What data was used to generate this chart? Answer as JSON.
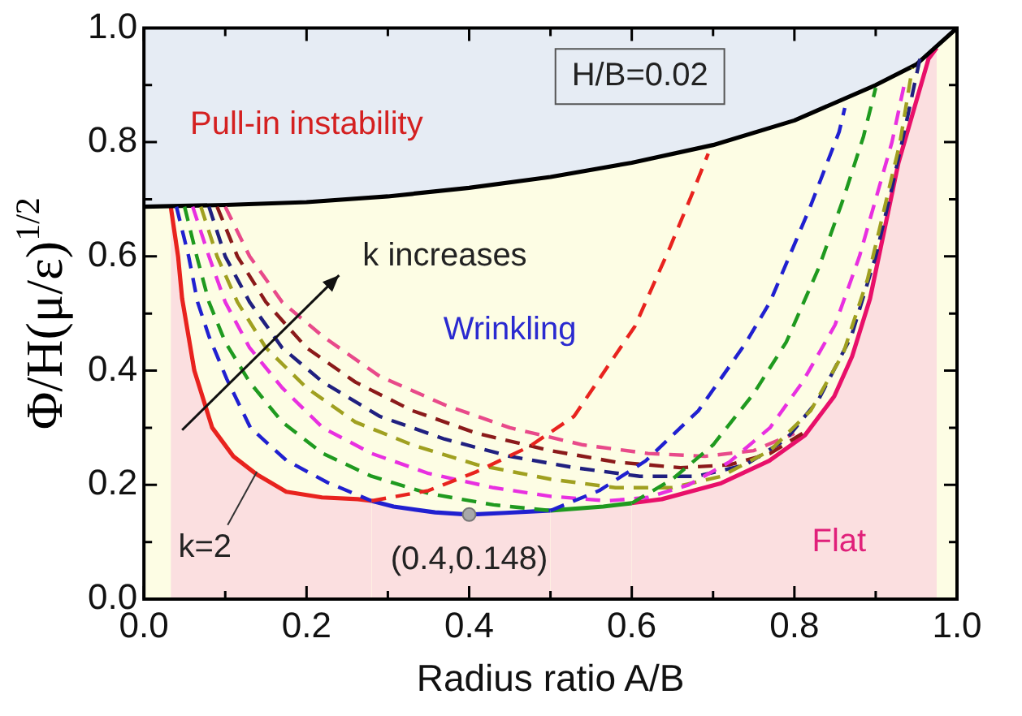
{
  "chart_data": {
    "type": "line",
    "xlabel": "Radius ratio A/B",
    "ylabel": "Φ/H(μ/ε)$^{1/2}$",
    "xlim": [
      0,
      1
    ],
    "ylim": [
      0,
      1
    ],
    "xticks": [
      {
        "value": 0,
        "label": "0.0"
      },
      {
        "value": 0.1,
        "label": null
      },
      {
        "value": 0.2,
        "label": "0.2"
      },
      {
        "value": 0.3,
        "label": null
      },
      {
        "value": 0.4,
        "label": "0.4"
      },
      {
        "value": 0.5,
        "label": null
      },
      {
        "value": 0.6,
        "label": "0.6"
      },
      {
        "value": 0.7,
        "label": null
      },
      {
        "value": 0.8,
        "label": "0.8"
      },
      {
        "value": 0.9,
        "label": null
      },
      {
        "value": 1,
        "label": "1.0"
      }
    ],
    "yticks": [
      {
        "value": 0,
        "label": "0.0"
      },
      {
        "value": 0.1,
        "label": null
      },
      {
        "value": 0.2,
        "label": "0.2"
      },
      {
        "value": 0.3,
        "label": null
      },
      {
        "value": 0.4,
        "label": "0.4"
      },
      {
        "value": 0.5,
        "label": null
      },
      {
        "value": 0.6,
        "label": "0.6"
      },
      {
        "value": 0.7,
        "label": null
      },
      {
        "value": 0.8,
        "label": "0.8"
      },
      {
        "value": 0.9,
        "label": null
      },
      {
        "value": 1,
        "label": "1.0"
      }
    ],
    "legend": false,
    "marker": "none",
    "series": [
      {
        "color": "#000000",
        "line_style": "solid",
        "x": [
          0,
          0.1,
          0.2,
          0.3,
          0.4,
          0.5,
          0.6,
          0.7,
          0.8,
          0.9,
          0.95,
          1
        ],
        "values": [
          0.687,
          0.69,
          0.695,
          0.705,
          0.72,
          0.739,
          0.764,
          0.795,
          0.838,
          0.9,
          0.936,
          1
        ]
      },
      {
        "type": "area",
        "color": "#e8231e",
        "line_style": "solid",
        "x": [
          0.033,
          0.042,
          0.047,
          0.062,
          0.084,
          0.11,
          0.139,
          0.175,
          0.219,
          0.263,
          0.28
        ],
        "values": [
          0.687,
          0.6,
          0.526,
          0.4,
          0.3,
          0.25,
          0.218,
          0.188,
          0.178,
          0.175,
          0.172
        ]
      },
      {
        "type": "area",
        "color": "#2020d0",
        "line_style": "solid",
        "x": [
          0.28,
          0.307,
          0.358,
          0.4,
          0.445,
          0.5
        ],
        "values": [
          0.172,
          0.162,
          0.152,
          0.148,
          0.151,
          0.155
        ]
      },
      {
        "type": "area",
        "color": "#1f9a1f",
        "line_style": "solid",
        "x": [
          0.5,
          0.565,
          0.6
        ],
        "values": [
          0.155,
          0.162,
          0.168
        ]
      },
      {
        "type": "area",
        "color": "#e8106a",
        "line_style": "solid",
        "x": [
          0.6,
          0.637,
          0.71,
          0.769,
          0.813,
          0.849,
          0.871,
          0.893,
          0.928,
          0.965,
          0.975
        ],
        "values": [
          0.168,
          0.175,
          0.203,
          0.242,
          0.287,
          0.355,
          0.425,
          0.526,
          0.764,
          0.946,
          0.965
        ]
      },
      {
        "color": "#e8231e",
        "line_style": "dashed",
        "x": [
          0.28,
          0.35,
          0.409,
          0.474,
          0.529,
          0.604,
          0.647,
          0.673,
          0.694
        ],
        "values": [
          0.172,
          0.19,
          0.223,
          0.267,
          0.32,
          0.478,
          0.616,
          0.705,
          0.78
        ]
      },
      {
        "color": "#2020d0",
        "line_style": "dashed",
        "x": [
          0.04,
          0.055,
          0.066,
          0.08,
          0.102,
          0.131,
          0.175,
          0.226,
          0.28,
          0.4,
          0.5,
          0.56,
          0.617,
          0.682,
          0.74,
          0.77,
          0.819,
          0.855,
          0.862
        ],
        "values": [
          0.687,
          0.6,
          0.52,
          0.46,
          0.385,
          0.3,
          0.243,
          0.204,
          0.172,
          null,
          0.155,
          0.19,
          0.242,
          0.33,
          0.448,
          0.52,
          0.685,
          0.818,
          0.86
        ]
      },
      {
        "color": "#1f9a1f",
        "line_style": "dashed",
        "x": [
          0.05,
          0.065,
          0.08,
          0.1,
          0.13,
          0.17,
          0.22,
          0.28,
          0.35,
          0.43,
          0.5,
          0.55,
          0.6,
          0.65,
          0.7,
          0.75,
          0.79,
          0.83,
          0.86,
          0.885,
          0.9
        ],
        "values": [
          0.687,
          0.6,
          0.52,
          0.45,
          0.38,
          0.31,
          0.255,
          0.215,
          0.185,
          0.165,
          0.155,
          null,
          0.168,
          0.21,
          0.27,
          0.36,
          0.45,
          0.58,
          0.7,
          0.81,
          0.895
        ]
      },
      {
        "color": "#e830e0",
        "line_style": "dashed",
        "x": [
          0.06,
          0.08,
          0.1,
          0.13,
          0.17,
          0.22,
          0.28,
          0.35,
          0.43,
          0.5,
          0.57,
          0.62,
          0.67,
          0.72,
          0.77,
          0.81,
          0.85,
          0.88,
          0.9,
          0.92,
          0.935
        ],
        "values": [
          0.687,
          0.6,
          0.52,
          0.44,
          0.37,
          0.3,
          0.255,
          0.22,
          0.195,
          0.18,
          0.172,
          0.178,
          0.2,
          0.24,
          0.3,
          0.38,
          0.48,
          0.6,
          0.7,
          0.8,
          0.9
        ]
      },
      {
        "color": "#a0a020",
        "line_style": "dashed",
        "x": [
          0.07,
          0.09,
          0.115,
          0.15,
          0.2,
          0.26,
          0.33,
          0.41,
          0.5,
          0.58,
          0.65,
          0.71,
          0.77,
          0.82,
          0.86,
          0.89,
          0.91,
          0.93,
          0.945
        ],
        "values": [
          0.687,
          0.6,
          0.52,
          0.44,
          0.37,
          0.31,
          0.27,
          0.235,
          0.21,
          0.195,
          0.195,
          0.215,
          0.26,
          0.33,
          0.43,
          0.56,
          0.68,
          0.8,
          0.93
        ]
      },
      {
        "color": "#202080",
        "line_style": "dashed",
        "x": [
          0.08,
          0.1,
          0.13,
          0.17,
          0.22,
          0.29,
          0.37,
          0.45,
          0.53,
          0.61,
          0.68,
          0.74,
          0.79,
          0.83,
          0.87,
          0.9,
          0.92,
          0.94,
          0.955
        ],
        "values": [
          0.687,
          0.6,
          0.52,
          0.44,
          0.38,
          0.32,
          0.28,
          0.25,
          0.23,
          0.215,
          0.215,
          0.235,
          0.28,
          0.35,
          0.46,
          0.6,
          0.72,
          0.85,
          0.95
        ]
      },
      {
        "color": "#8b1a1a",
        "line_style": "dashed",
        "x": [
          0.09,
          0.115,
          0.15,
          0.2,
          0.26,
          0.33,
          0.41,
          0.5,
          0.58,
          0.66,
          0.72,
          0.77,
          0.81
        ],
        "values": [
          0.687,
          0.6,
          0.52,
          0.44,
          0.38,
          0.33,
          0.29,
          0.26,
          0.24,
          0.23,
          0.235,
          0.255,
          0.29
        ]
      },
      {
        "color": "#e84a8a",
        "line_style": "dashed",
        "x": [
          0.1,
          0.13,
          0.17,
          0.22,
          0.29,
          0.37,
          0.45,
          0.54,
          0.62,
          0.69,
          0.75,
          0.8
        ],
        "values": [
          0.687,
          0.6,
          0.52,
          0.46,
          0.39,
          0.34,
          0.3,
          0.27,
          0.255,
          0.25,
          0.26,
          0.29
        ]
      },
      {
        "type": "scatter",
        "marker": "circle",
        "color": "#a8a8a8",
        "x": [
          0.4
        ],
        "values": [
          0.148
        ]
      }
    ],
    "annotations": [
      "Pull-in instability",
      "H/B=0.02",
      "k increases",
      "Wrinkling",
      "Flat",
      {
        "text": "k=2",
        "x": 0.139,
        "y": 0.223
      },
      {
        "text": "(0.4,0.148)",
        "x": 0.4,
        "y": 0.148
      }
    ]
  }
}
